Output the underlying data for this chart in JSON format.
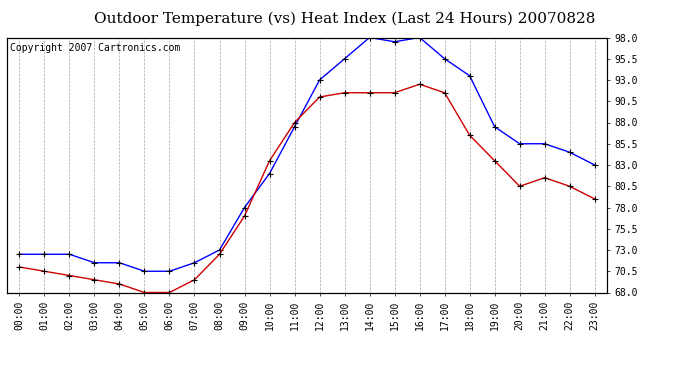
{
  "title": "Outdoor Temperature (vs) Heat Index (Last 24 Hours) 20070828",
  "copyright": "Copyright 2007 Cartronics.com",
  "hours": [
    "00:00",
    "01:00",
    "02:00",
    "03:00",
    "04:00",
    "05:00",
    "06:00",
    "07:00",
    "08:00",
    "09:00",
    "10:00",
    "11:00",
    "12:00",
    "13:00",
    "14:00",
    "15:00",
    "16:00",
    "17:00",
    "18:00",
    "19:00",
    "20:00",
    "21:00",
    "22:00",
    "23:00"
  ],
  "blue_data": [
    72.5,
    72.5,
    72.5,
    71.5,
    71.5,
    70.5,
    70.5,
    71.5,
    73.0,
    78.0,
    82.0,
    87.5,
    93.0,
    95.5,
    98.0,
    97.5,
    98.0,
    95.5,
    93.5,
    87.5,
    85.5,
    85.5,
    84.5,
    83.0
  ],
  "red_data": [
    71.0,
    70.5,
    70.0,
    69.5,
    69.0,
    68.0,
    68.0,
    69.5,
    72.5,
    77.0,
    83.5,
    88.0,
    91.0,
    91.5,
    91.5,
    91.5,
    92.5,
    91.5,
    86.5,
    83.5,
    80.5,
    81.5,
    80.5,
    79.0
  ],
  "ylim": [
    68.0,
    98.0
  ],
  "yticks": [
    68.0,
    70.5,
    73.0,
    75.5,
    78.0,
    80.5,
    83.0,
    85.5,
    88.0,
    90.5,
    93.0,
    95.5,
    98.0
  ],
  "blue_color": "#0000ff",
  "red_color": "#cc0000",
  "bg_color": "#ffffff",
  "grid_color": "#aaaaaa",
  "title_fontsize": 11,
  "copyright_fontsize": 7,
  "tick_fontsize": 7
}
